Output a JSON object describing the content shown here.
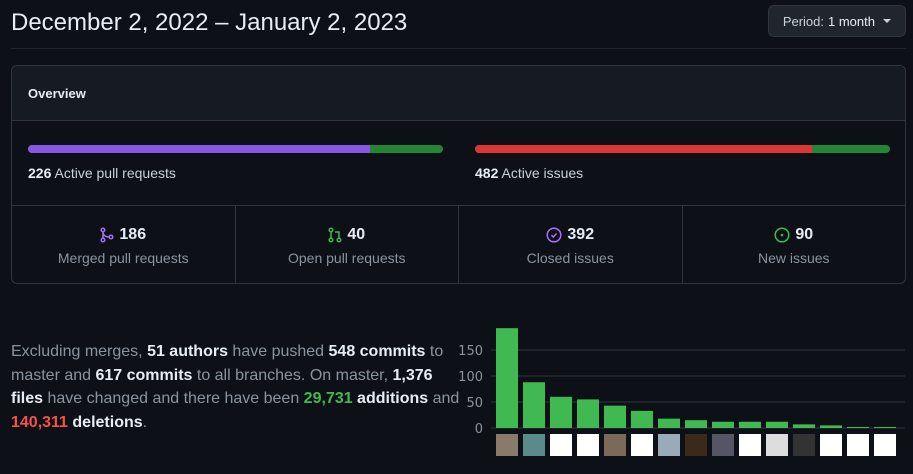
{
  "header": {
    "title": "December 2, 2022 – January 2, 2023",
    "period_label": "Period:",
    "period_value": "1 month"
  },
  "overview": {
    "title": "Overview",
    "pull_requests": {
      "count": "226",
      "label": "Active pull requests",
      "merged_fraction": 0.823,
      "merged_color": "#8957e5",
      "open_color": "#238636"
    },
    "issues": {
      "count": "482",
      "label": "Active issues",
      "closed_fraction": 0.813,
      "closed_color": "#da3633",
      "open_color": "#238636"
    },
    "stats": [
      {
        "icon": "git-merge-icon",
        "value": "186",
        "label": "Merged pull requests",
        "color": "#a371f7"
      },
      {
        "icon": "git-pull-request-icon",
        "value": "40",
        "label": "Open pull requests",
        "color": "#3fb950"
      },
      {
        "icon": "issue-closed-icon",
        "value": "392",
        "label": "Closed issues",
        "color": "#a371f7"
      },
      {
        "icon": "issue-opened-icon",
        "value": "90",
        "label": "New issues",
        "color": "#3fb950"
      }
    ]
  },
  "summary": {
    "t1": "Excluding merges, ",
    "authors": "51 authors",
    "t2": " have pushed ",
    "commits": "548 commits",
    "t3": " to master and ",
    "all_commits": "617 commits",
    "t4": " to all branches. On master, ",
    "files": "1,376 files",
    "t5": " have changed and there have been ",
    "additions": "29,731",
    "t6": " additions",
    "t7": " and ",
    "deletions": "140,311",
    "t8": " deletions",
    "t9": "."
  },
  "chart_data": {
    "type": "bar",
    "categories": [
      "author-1",
      "author-2",
      "author-3",
      "author-4",
      "author-5",
      "author-6",
      "author-7",
      "author-8",
      "author-9",
      "author-10",
      "author-11",
      "author-12",
      "author-13",
      "author-14",
      "author-15"
    ],
    "values": [
      192,
      88,
      60,
      55,
      43,
      33,
      18,
      15,
      12,
      12,
      12,
      7,
      5,
      2,
      2
    ],
    "ylim": [
      0,
      200
    ],
    "yticks": [
      0,
      50,
      100,
      150
    ],
    "grid": true,
    "bar_color": "#3fb950"
  }
}
